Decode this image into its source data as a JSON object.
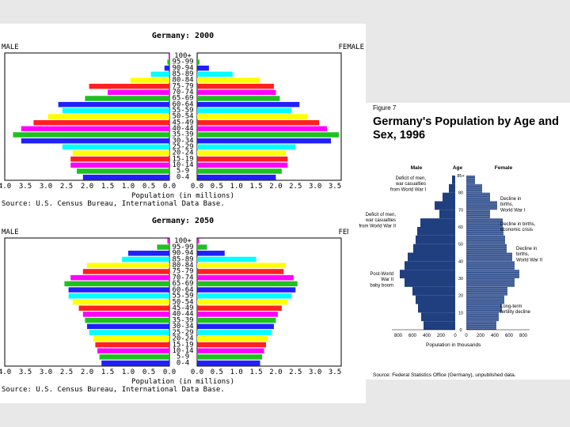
{
  "age_groups": [
    "0-4",
    "5-9",
    "10-14",
    "15-19",
    "20-24",
    "25-29",
    "30-34",
    "35-39",
    "40-44",
    "45-49",
    "50-54",
    "55-59",
    "60-64",
    "65-69",
    "70-74",
    "75-79",
    "80-84",
    "85-89",
    "90-94",
    "95-99",
    "100+"
  ],
  "bar_colors": [
    "#2020ff",
    "#20c020",
    "#ff00ff",
    "#ff2020",
    "#ffff00",
    "#00ffff",
    "#2020ff",
    "#20c020",
    "#ff00ff",
    "#ff2020",
    "#ffff00",
    "#00ffff",
    "#2020ff",
    "#20c020",
    "#ff00ff",
    "#ff2020",
    "#ffff00",
    "#00ffff",
    "#2020ff",
    "#20c020",
    "#ff00ff"
  ],
  "source_text": "Source: U.S. Census Bureau, International Data Base.",
  "xlabel": "Population (in millions)",
  "ticks_left": [
    "4.0",
    "3.5",
    "3.0",
    "2.5",
    "2.0",
    "1.5",
    "1.0",
    "0.5",
    "0.0"
  ],
  "ticks_right": [
    "0.0",
    "0.5",
    "1.0",
    "1.5",
    "2.0",
    "2.5",
    "3.0",
    "3.5"
  ],
  "chart_data": [
    {
      "type": "bar",
      "title": "Germany: 2000",
      "left_label": "MALE",
      "right_label": "FEMALE",
      "xlabel": "Population (in millions)",
      "xlim": [
        0,
        4.0
      ],
      "categories": [
        "0-4",
        "5-9",
        "10-14",
        "15-19",
        "20-24",
        "25-29",
        "30-34",
        "35-39",
        "40-44",
        "45-49",
        "50-54",
        "55-59",
        "60-64",
        "65-69",
        "70-74",
        "75-79",
        "80-84",
        "85-89",
        "90-94",
        "95-99",
        "100+"
      ],
      "series": [
        {
          "name": "MALE",
          "values": [
            2.1,
            2.25,
            2.4,
            2.4,
            2.35,
            2.6,
            3.6,
            3.8,
            3.6,
            3.3,
            2.95,
            2.6,
            2.7,
            2.05,
            1.5,
            1.95,
            0.95,
            0.45,
            0.12,
            0.05,
            0.02
          ]
        },
        {
          "name": "FEMALE",
          "values": [
            2.0,
            2.15,
            2.3,
            2.3,
            2.25,
            2.5,
            3.4,
            3.6,
            3.3,
            3.1,
            2.8,
            2.4,
            2.6,
            2.1,
            2.0,
            1.95,
            1.6,
            0.9,
            0.3,
            0.06,
            0.02
          ]
        }
      ]
    },
    {
      "type": "bar",
      "title": "Germany: 2050",
      "left_label": "MALE",
      "right_label": "FEMALE",
      "xlabel": "Population (in millions)",
      "xlim": [
        0,
        4.0
      ],
      "categories": [
        "0-4",
        "5-9",
        "10-14",
        "15-19",
        "20-24",
        "25-29",
        "30-34",
        "35-39",
        "40-44",
        "45-49",
        "50-54",
        "55-59",
        "60-64",
        "65-69",
        "70-74",
        "75-79",
        "80-84",
        "85-89",
        "90-94",
        "95-99",
        "100+"
      ],
      "series": [
        {
          "name": "MALE",
          "values": [
            1.65,
            1.7,
            1.75,
            1.8,
            1.85,
            1.95,
            2.0,
            2.05,
            2.1,
            2.2,
            2.35,
            2.45,
            2.45,
            2.55,
            2.4,
            2.1,
            2.0,
            1.15,
            1.0,
            0.3,
            0.05
          ]
        },
        {
          "name": "FEMALE",
          "values": [
            1.6,
            1.65,
            1.7,
            1.75,
            1.8,
            1.9,
            1.95,
            2.0,
            2.05,
            2.15,
            2.3,
            2.4,
            2.5,
            2.55,
            2.45,
            2.2,
            2.25,
            1.5,
            0.7,
            0.25,
            0.05
          ]
        }
      ]
    },
    {
      "type": "bar",
      "figure_label": "Figure 7",
      "title": "Germany's Population by Age and Sex, 1996",
      "left_label": "Male",
      "center_label": "Age",
      "right_label": "Female",
      "xlabel": "Population in thousands",
      "x_ticks_left": [
        "800",
        "600",
        "400",
        "200",
        "0"
      ],
      "x_ticks_right": [
        "0",
        "200",
        "400",
        "600",
        "800"
      ],
      "y_ticks": [
        "0",
        "10",
        "20",
        "30",
        "40",
        "50",
        "60",
        "70",
        "80",
        "85+"
      ],
      "ages": [
        0,
        5,
        10,
        15,
        20,
        25,
        30,
        35,
        40,
        45,
        50,
        55,
        60,
        65,
        70,
        75,
        80,
        85
      ],
      "male": [
        400,
        430,
        470,
        500,
        540,
        640,
        700,
        640,
        600,
        530,
        500,
        480,
        440,
        200,
        260,
        160,
        80,
        40
      ],
      "female": [
        380,
        410,
        450,
        480,
        520,
        610,
        670,
        610,
        580,
        510,
        490,
        470,
        460,
        300,
        390,
        300,
        200,
        110
      ],
      "annotations": [
        "Deficit of men, war casualties from World War I",
        "Deficit of men, war casualties from World War II",
        "Post-World War II baby boom",
        "Decline in births, World War I",
        "Decline in births, economic crisis",
        "Decline in births, World War II",
        "Long-term fertility decline"
      ],
      "source": "Source: Federal Statistics Office (Germany), unpublished data."
    }
  ]
}
